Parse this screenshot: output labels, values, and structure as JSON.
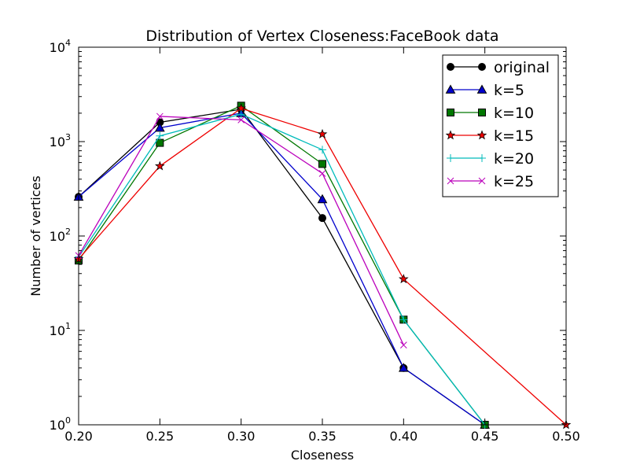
{
  "chart_data": {
    "type": "line",
    "title": "Distribution of Vertex Closeness:FaceBook data",
    "xlabel": "Closeness",
    "ylabel": "Number of vertices",
    "xlim": [
      0.2,
      0.5
    ],
    "ylim": [
      1,
      10000
    ],
    "yscale": "log",
    "grid": false,
    "legend_position": "top-right",
    "x_ticks": [
      "0.20",
      "0.25",
      "0.30",
      "0.35",
      "0.40",
      "0.45",
      "0.50"
    ],
    "y_ticks": [
      {
        "base": "10",
        "exp": "0"
      },
      {
        "base": "10",
        "exp": "1"
      },
      {
        "base": "10",
        "exp": "2"
      },
      {
        "base": "10",
        "exp": "3"
      },
      {
        "base": "10",
        "exp": "4"
      }
    ],
    "series": [
      {
        "name": "original",
        "color": "#000000",
        "marker": "circle",
        "x": [
          0.2,
          0.25,
          0.3,
          0.35,
          0.4,
          0.45
        ],
        "y": [
          260,
          1600,
          2200,
          155,
          4,
          1
        ]
      },
      {
        "name": "k=5",
        "color": "#0000cc",
        "marker": "triangle-up",
        "x": [
          0.2,
          0.25,
          0.3,
          0.35,
          0.4,
          0.45
        ],
        "y": [
          260,
          1400,
          2000,
          245,
          4,
          1
        ]
      },
      {
        "name": "k=10",
        "color": "#007700",
        "marker": "square",
        "x": [
          0.2,
          0.25,
          0.3,
          0.35,
          0.4,
          0.45
        ],
        "y": [
          55,
          970,
          2400,
          580,
          13,
          1
        ]
      },
      {
        "name": "k=15",
        "color": "#ee0000",
        "marker": "star",
        "x": [
          0.2,
          0.25,
          0.3,
          0.35,
          0.4,
          0.5
        ],
        "y": [
          57,
          550,
          2250,
          1200,
          35,
          1
        ]
      },
      {
        "name": "k=20",
        "color": "#00bbbb",
        "marker": "plus",
        "x": [
          0.2,
          0.25,
          0.3,
          0.35,
          0.4,
          0.45
        ],
        "y": [
          60,
          1150,
          1950,
          820,
          13,
          1
        ]
      },
      {
        "name": "k=25",
        "color": "#bb00bb",
        "marker": "x",
        "x": [
          0.2,
          0.25,
          0.3,
          0.35,
          0.4
        ],
        "y": [
          62,
          1850,
          1700,
          460,
          7
        ]
      }
    ]
  }
}
